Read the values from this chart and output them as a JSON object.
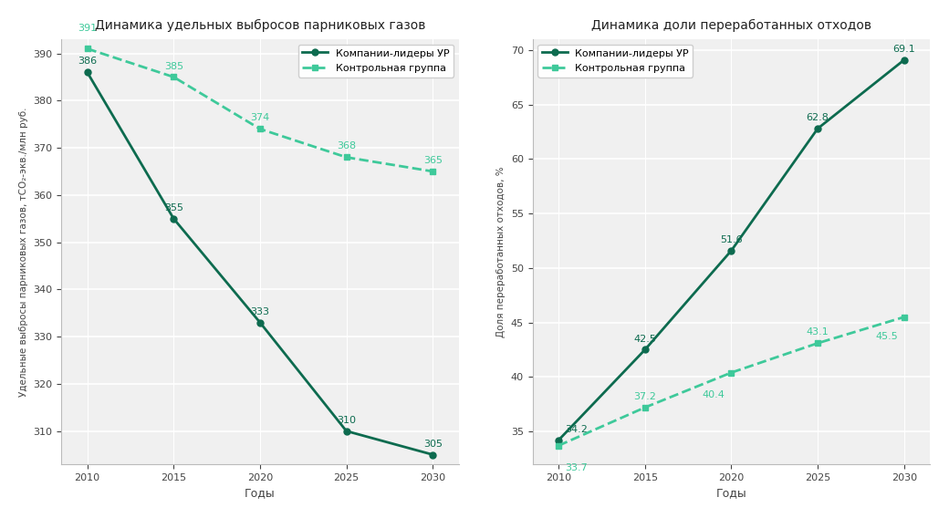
{
  "years": [
    2010,
    2015,
    2020,
    2025,
    2030
  ],
  "left_title": "Динамика удельных выбросов парниковых газов",
  "right_title": "Динамика доли переработанных отходов",
  "xlabel": "Годы",
  "left_ylabel": "Удельные выбросы парниковых газов, тСО₂-экв./млн руб.",
  "right_ylabel": "Доля переработанных отходов, %",
  "legend_leaders": "Компании-лидеры УР",
  "legend_control": "Контрольная группа",
  "left_leaders": [
    386,
    355,
    333,
    310,
    305
  ],
  "left_control": [
    391,
    385,
    374,
    368,
    365
  ],
  "right_leaders": [
    34.2,
    42.5,
    51.6,
    62.8,
    69.1
  ],
  "right_control": [
    33.7,
    37.2,
    40.4,
    43.1,
    45.5
  ],
  "left_ylim": [
    303,
    393
  ],
  "right_ylim": [
    32,
    71
  ],
  "color_leaders": "#0d6b4f",
  "color_control": "#3ec99a",
  "bg_color": "#ffffff",
  "plot_bg": "#f0f0f0"
}
